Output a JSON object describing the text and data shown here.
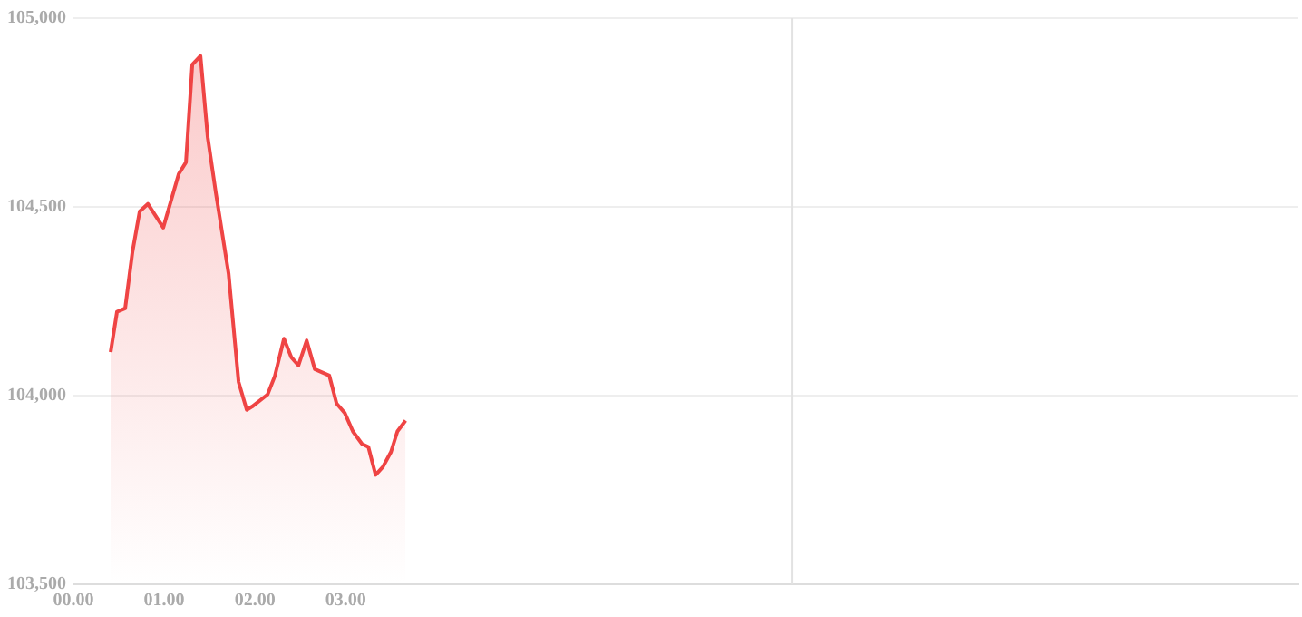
{
  "chart_data": {
    "type": "area",
    "x": [
      0.41,
      0.48,
      0.57,
      0.65,
      0.73,
      0.82,
      0.99,
      1.16,
      1.24,
      1.31,
      1.4,
      1.48,
      1.57,
      1.71,
      1.82,
      1.91,
      1.97,
      2.14,
      2.22,
      2.32,
      2.4,
      2.48,
      2.57,
      2.66,
      2.82,
      2.9,
      2.99,
      3.08,
      3.18,
      3.25,
      3.33,
      3.41,
      3.5,
      3.57,
      3.66
    ],
    "series": [
      {
        "color": "#ef4444",
        "values": [
          104115,
          104222,
          104231,
          104380,
          104488,
          104508,
          104445,
          104587,
          104618,
          104877,
          104900,
          104684,
          104536,
          104323,
          104036,
          103962,
          103971,
          104003,
          104052,
          104151,
          104102,
          104080,
          104146,
          104070,
          104053,
          103979,
          103954,
          103905,
          103872,
          103864,
          103790,
          103811,
          103851,
          103905,
          103934
        ]
      }
    ],
    "xlim": [
      0,
      13.5
    ],
    "xticks": [
      {
        "value": 0,
        "label": "00.00"
      },
      {
        "value": 1,
        "label": "01.00"
      },
      {
        "value": 2,
        "label": "02.00"
      },
      {
        "value": 3,
        "label": "03.00"
      }
    ],
    "ylim": [
      103500,
      105000
    ],
    "yticks": [
      {
        "value": 103500,
        "label": "103,500"
      },
      {
        "value": 104000,
        "label": "104,000"
      },
      {
        "value": 104500,
        "label": "104,500"
      },
      {
        "value": 105000,
        "label": "105,000"
      }
    ],
    "ref_lines": [
      {
        "axis": "x",
        "value": 7.92,
        "color": "#e2e2e2"
      }
    ],
    "grid": "y",
    "legend": false,
    "marker": "none",
    "line_style": "solid"
  }
}
